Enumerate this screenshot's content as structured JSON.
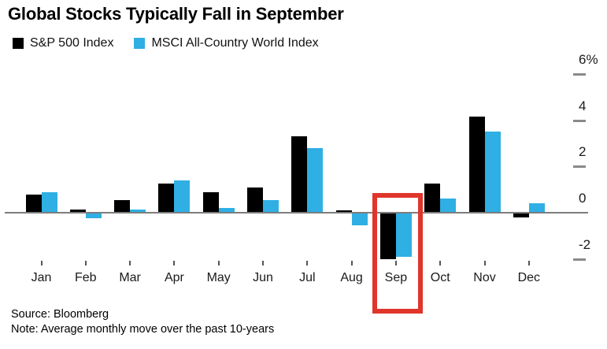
{
  "chart_data": {
    "type": "bar",
    "title": "Global Stocks Typically Fall in September",
    "categories": [
      "Jan",
      "Feb",
      "Mar",
      "Apr",
      "May",
      "Jun",
      "Jul",
      "Aug",
      "Sep",
      "Oct",
      "Nov",
      "Dec"
    ],
    "series": [
      {
        "name": "S&P 500 Index",
        "color": "#000000",
        "values": [
          0.8,
          0.15,
          0.55,
          1.25,
          0.9,
          1.1,
          3.3,
          0.1,
          -2.0,
          1.25,
          4.15,
          -0.2
        ]
      },
      {
        "name": "MSCI All-Country World Index",
        "color": "#2fafe3",
        "values": [
          0.9,
          -0.25,
          0.15,
          1.4,
          0.2,
          0.55,
          2.8,
          -0.55,
          -1.9,
          0.6,
          3.5,
          0.4
        ]
      }
    ],
    "xlabel": "",
    "ylabel": "",
    "y_unit": "%",
    "ylim": [
      -2.7,
      6.5
    ],
    "yticks": [
      {
        "value": 6,
        "label": "6%"
      },
      {
        "value": 4,
        "label": "4"
      },
      {
        "value": 2,
        "label": "2"
      },
      {
        "value": 0,
        "label": "0"
      },
      {
        "value": -2,
        "label": "-2"
      }
    ],
    "grid": false,
    "legend_position": "top-left",
    "highlight": {
      "category": "Sep",
      "style": "red-outline-box",
      "color": "#e0352b"
    }
  },
  "footer": {
    "source": "Source: Bloomberg",
    "note": "Note: Average monthly move over the past 10-years"
  },
  "colors": {
    "sp500_bar": "#000000",
    "msci_bar": "#2fafe3",
    "highlight_red": "#e0352b",
    "axis_line": "#7d7d7d",
    "text": "#1a1a1a",
    "background": "#ffffff"
  }
}
